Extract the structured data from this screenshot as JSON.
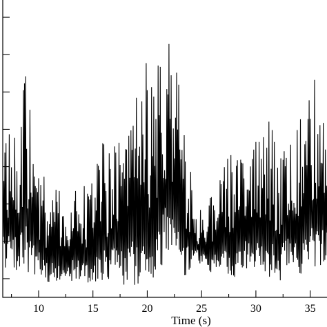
{
  "chart_data": {
    "type": "line",
    "title": "",
    "xlabel": "Time (s)",
    "ylabel": "",
    "xlim": [
      6.7,
      36.8
    ],
    "ylim": [
      0,
      1
    ],
    "x_ticks": [
      10,
      15,
      20,
      25,
      30,
      35
    ],
    "x_tick_labels": [
      "10",
      "15",
      "20",
      "25",
      "30",
      "35"
    ],
    "y_tick_count": 8,
    "grid": false,
    "legend": "none",
    "line_color": "#000000",
    "series": [
      {
        "envelope_x": [
          6.7,
          7.2,
          7.7,
          8.2,
          8.8,
          9.3,
          9.8,
          10.3,
          10.8,
          11.3,
          11.8,
          12.3,
          12.8,
          13.3,
          13.8,
          14.3,
          14.8,
          15.3,
          15.8,
          16.3,
          16.8,
          17.3,
          17.8,
          18.3,
          18.8,
          19.3,
          19.8,
          20.3,
          20.8,
          21.3,
          21.8,
          22.3,
          22.8,
          23.3,
          23.8,
          24.3,
          24.8,
          25.3,
          25.8,
          26.3,
          26.8,
          27.3,
          27.8,
          28.3,
          28.8,
          29.3,
          29.8,
          30.3,
          30.8,
          31.3,
          31.8,
          32.3,
          32.8,
          33.3,
          33.8,
          34.3,
          34.8,
          35.3,
          35.8,
          36.3,
          36.8
        ],
        "envelope_peak": [
          0.6,
          0.6,
          0.6,
          0.6,
          0.74,
          0.6,
          0.47,
          0.42,
          0.38,
          0.36,
          0.36,
          0.34,
          0.36,
          0.36,
          0.34,
          0.38,
          0.4,
          0.46,
          0.52,
          0.5,
          0.55,
          0.6,
          0.5,
          0.6,
          0.74,
          0.56,
          0.8,
          0.72,
          0.64,
          0.98,
          0.88,
          0.8,
          0.74,
          0.6,
          0.46,
          0.36,
          0.3,
          0.32,
          0.36,
          0.36,
          0.4,
          0.46,
          0.48,
          0.5,
          0.54,
          0.6,
          0.52,
          0.52,
          0.54,
          0.6,
          0.5,
          0.5,
          0.62,
          0.6,
          0.56,
          0.62,
          0.7,
          0.74,
          0.68,
          0.56,
          0.46
        ],
        "envelope_trough": [
          0.1,
          0.08,
          0.1,
          0.08,
          0.1,
          0.06,
          0.06,
          0.05,
          0.04,
          0.04,
          0.04,
          0.04,
          0.05,
          0.05,
          0.05,
          0.04,
          0.05,
          0.04,
          0.05,
          0.04,
          0.05,
          0.04,
          0.04,
          0.04,
          0.04,
          0.04,
          0.04,
          0.05,
          0.06,
          0.1,
          0.1,
          0.1,
          0.08,
          0.06,
          0.08,
          0.12,
          0.1,
          0.1,
          0.08,
          0.1,
          0.1,
          0.06,
          0.06,
          0.06,
          0.08,
          0.1,
          0.1,
          0.08,
          0.08,
          0.06,
          0.06,
          0.05,
          0.08,
          0.08,
          0.06,
          0.06,
          0.08,
          0.08,
          0.1,
          0.12,
          0.14
        ],
        "oscillation_period_s": 0.1
      }
    ]
  }
}
